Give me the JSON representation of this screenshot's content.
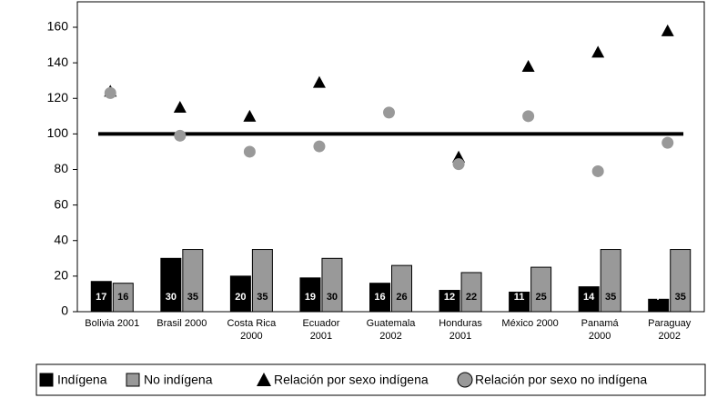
{
  "chart_data": {
    "type": "bar",
    "categories": [
      "Bolivia 2001",
      "Brasil 2000",
      "Costa Rica\n2000",
      "Ecuador\n2001",
      "Guatemala\n2002",
      "Honduras\n2001",
      "México 2000",
      "Panamá\n2000",
      "Paraguay\n2002"
    ],
    "series": [
      {
        "name": "Indígena",
        "color": "#000000",
        "values": [
          17,
          30,
          20,
          19,
          16,
          12,
          11,
          14,
          7
        ]
      },
      {
        "name": "No indígena",
        "color": "#999999",
        "values": [
          16,
          35,
          35,
          30,
          26,
          22,
          25,
          35,
          35
        ]
      },
      {
        "name": "Relación por sexo indígena",
        "type": "scatter",
        "marker": "triangle",
        "color": "#000000",
        "values": [
          124,
          115,
          110,
          129,
          null,
          87,
          138,
          146,
          158
        ]
      },
      {
        "name": "Relación por sexo no indígena",
        "type": "scatter",
        "marker": "circle",
        "color": "#999999",
        "values": [
          123,
          99,
          90,
          93,
          112,
          83,
          110,
          79,
          95
        ]
      }
    ],
    "reference_value": 100,
    "ylim": [
      0,
      160
    ],
    "yticks": [
      0,
      20,
      40,
      60,
      80,
      100,
      120,
      140,
      160
    ],
    "legend": "bottom"
  }
}
